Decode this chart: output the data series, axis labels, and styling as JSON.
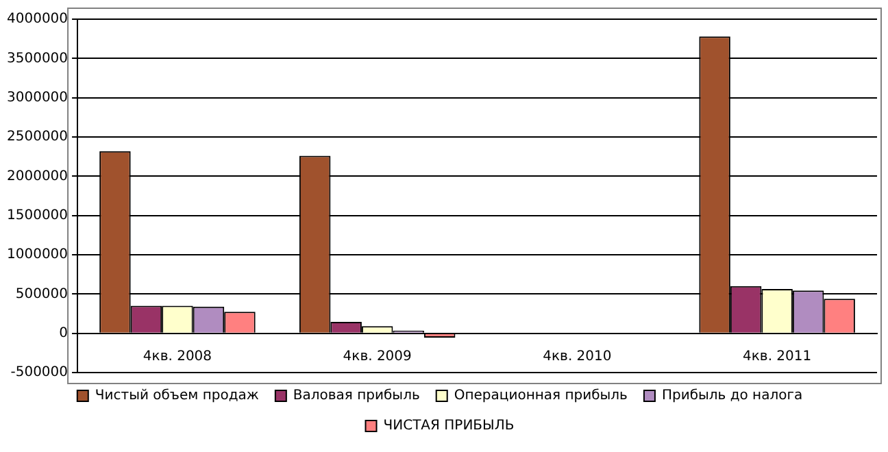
{
  "chart_data": {
    "type": "bar",
    "categories": [
      "4кв. 2008",
      "4кв. 2009",
      "4кв. 2010",
      "4кв. 2011"
    ],
    "series": [
      {
        "name": "Чистый объем продаж",
        "color": "#a0522d",
        "values": [
          2320000,
          2260000,
          null,
          3780000
        ]
      },
      {
        "name": "Валовая прибыль",
        "color": "#993366",
        "values": [
          350000,
          145000,
          null,
          600000
        ]
      },
      {
        "name": "Операционная прибыль",
        "color": "#ffffcc",
        "values": [
          350000,
          90000,
          null,
          565000
        ]
      },
      {
        "name": "Прибыль до налога",
        "color": "#b08cc0",
        "values": [
          340000,
          35000,
          null,
          545000
        ]
      },
      {
        "name": "ЧИСТАЯ ПРИБЫЛЬ",
        "color": "#ff8080",
        "values": [
          275000,
          -55000,
          null,
          440000
        ]
      }
    ],
    "ylim": [
      -500000,
      4000000
    ],
    "yticks": [
      -500000,
      0,
      500000,
      1000000,
      1500000,
      2000000,
      2500000,
      3000000,
      3500000,
      4000000
    ],
    "grid": "y",
    "legend": "bottom"
  }
}
